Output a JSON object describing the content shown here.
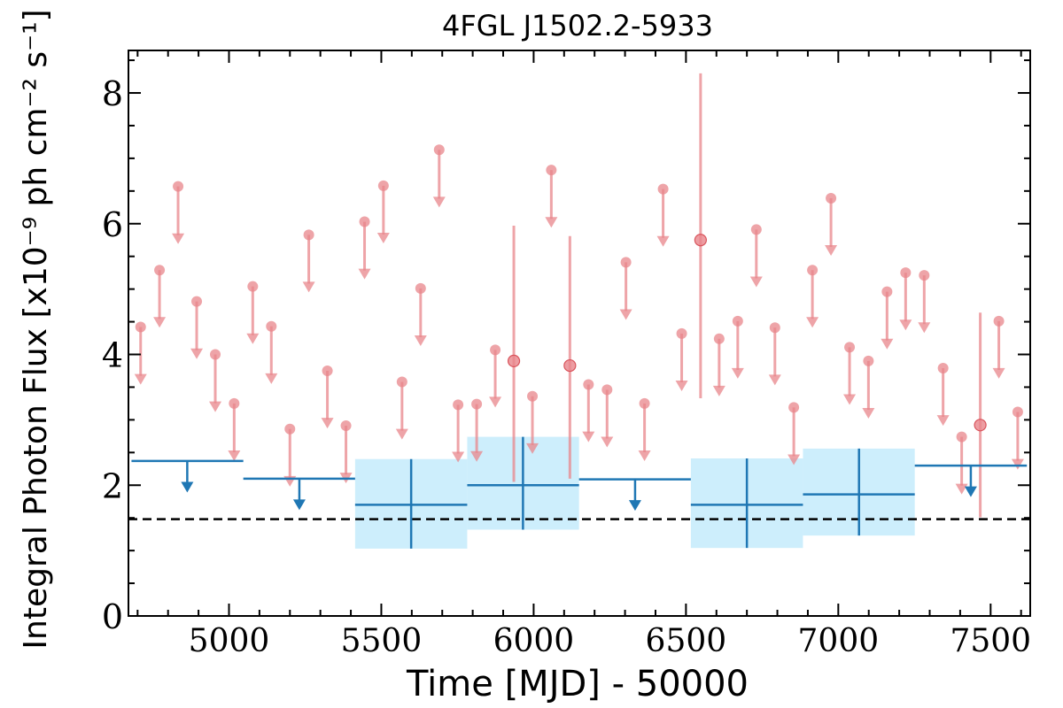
{
  "chart_data": {
    "type": "scatter",
    "title": "4FGL J1502.2-5933",
    "xlabel": "Time [MJD] - 50000",
    "ylabel": "Integral Photon Flux [x10⁻⁹ ph cm⁻² s⁻¹]",
    "xlim": [
      4670,
      7630
    ],
    "ylim": [
      0,
      8.65
    ],
    "xticks": [
      5000,
      5500,
      6000,
      6500,
      7000,
      7500
    ],
    "yticks": [
      0,
      2,
      4,
      6,
      8
    ],
    "grid": false,
    "legend": "none",
    "reference_line": {
      "y": 1.48,
      "style": "dashed",
      "color": "#000000"
    },
    "colors": {
      "fine": "#e8858b",
      "coarse": "#1f77b4",
      "band": "#cdeefc"
    },
    "series": [
      {
        "binning": "fine",
        "upper_limits": [
          {
            "x": 4710,
            "y": 4.42
          },
          {
            "x": 4772,
            "y": 5.29
          },
          {
            "x": 4833,
            "y": 6.57
          },
          {
            "x": 4894,
            "y": 4.81
          },
          {
            "x": 4955,
            "y": 4.0
          },
          {
            "x": 5017,
            "y": 3.25
          },
          {
            "x": 5078,
            "y": 5.04
          },
          {
            "x": 5139,
            "y": 4.43
          },
          {
            "x": 5200,
            "y": 2.86
          },
          {
            "x": 5262,
            "y": 5.83
          },
          {
            "x": 5323,
            "y": 3.75
          },
          {
            "x": 5384,
            "y": 2.91
          },
          {
            "x": 5445,
            "y": 6.03
          },
          {
            "x": 5507,
            "y": 6.58
          },
          {
            "x": 5568,
            "y": 3.58
          },
          {
            "x": 5629,
            "y": 5.01
          },
          {
            "x": 5690,
            "y": 7.13
          },
          {
            "x": 5752,
            "y": 3.23
          },
          {
            "x": 5813,
            "y": 3.24
          },
          {
            "x": 5874,
            "y": 4.07
          },
          {
            "x": 5996,
            "y": 3.36
          },
          {
            "x": 6058,
            "y": 6.82
          },
          {
            "x": 6180,
            "y": 3.54
          },
          {
            "x": 6241,
            "y": 3.46
          },
          {
            "x": 6303,
            "y": 5.41
          },
          {
            "x": 6364,
            "y": 3.25
          },
          {
            "x": 6425,
            "y": 6.53
          },
          {
            "x": 6486,
            "y": 4.32
          },
          {
            "x": 6609,
            "y": 4.24
          },
          {
            "x": 6670,
            "y": 4.51
          },
          {
            "x": 6731,
            "y": 5.91
          },
          {
            "x": 6792,
            "y": 4.41
          },
          {
            "x": 6854,
            "y": 3.19
          },
          {
            "x": 6915,
            "y": 5.29
          },
          {
            "x": 6976,
            "y": 6.39
          },
          {
            "x": 7037,
            "y": 4.11
          },
          {
            "x": 7099,
            "y": 3.9
          },
          {
            "x": 7160,
            "y": 4.96
          },
          {
            "x": 7221,
            "y": 5.25
          },
          {
            "x": 7282,
            "y": 5.21
          },
          {
            "x": 7344,
            "y": 3.79
          },
          {
            "x": 7405,
            "y": 2.74
          },
          {
            "x": 7527,
            "y": 4.51
          },
          {
            "x": 7589,
            "y": 3.12
          }
        ],
        "detections": [
          {
            "x": 5935,
            "y": 3.9,
            "ylow": 2.05,
            "yhigh": 5.97
          },
          {
            "x": 6119,
            "y": 3.83,
            "ylow": 2.1,
            "yhigh": 5.81
          },
          {
            "x": 6548,
            "y": 5.75,
            "ylow": 3.33,
            "yhigh": 8.3
          },
          {
            "x": 7466,
            "y": 2.92,
            "ylow": 1.51,
            "yhigh": 4.64
          }
        ]
      },
      {
        "binning": "coarse",
        "upper_limits": [
          {
            "x": 4863,
            "xlow": 4680,
            "xhigh": 5047,
            "y": 2.37
          },
          {
            "x": 5231,
            "xlow": 5047,
            "xhigh": 5414,
            "y": 2.1
          },
          {
            "x": 6333,
            "xlow": 6149,
            "xhigh": 6516,
            "y": 2.09
          },
          {
            "x": 7435,
            "xlow": 7251,
            "xhigh": 7619,
            "y": 2.3
          }
        ],
        "detections": [
          {
            "x": 5598,
            "xlow": 5414,
            "xhigh": 5782,
            "y": 1.7,
            "ylow": 1.03,
            "yhigh": 2.4
          },
          {
            "x": 5965,
            "xlow": 5782,
            "xhigh": 6149,
            "y": 2.0,
            "ylow": 1.32,
            "yhigh": 2.74
          },
          {
            "x": 6700,
            "xlow": 6516,
            "xhigh": 6884,
            "y": 1.7,
            "ylow": 1.04,
            "yhigh": 2.41
          },
          {
            "x": 7068,
            "xlow": 6884,
            "xhigh": 7251,
            "y": 1.86,
            "ylow": 1.23,
            "yhigh": 2.56
          }
        ]
      }
    ]
  }
}
